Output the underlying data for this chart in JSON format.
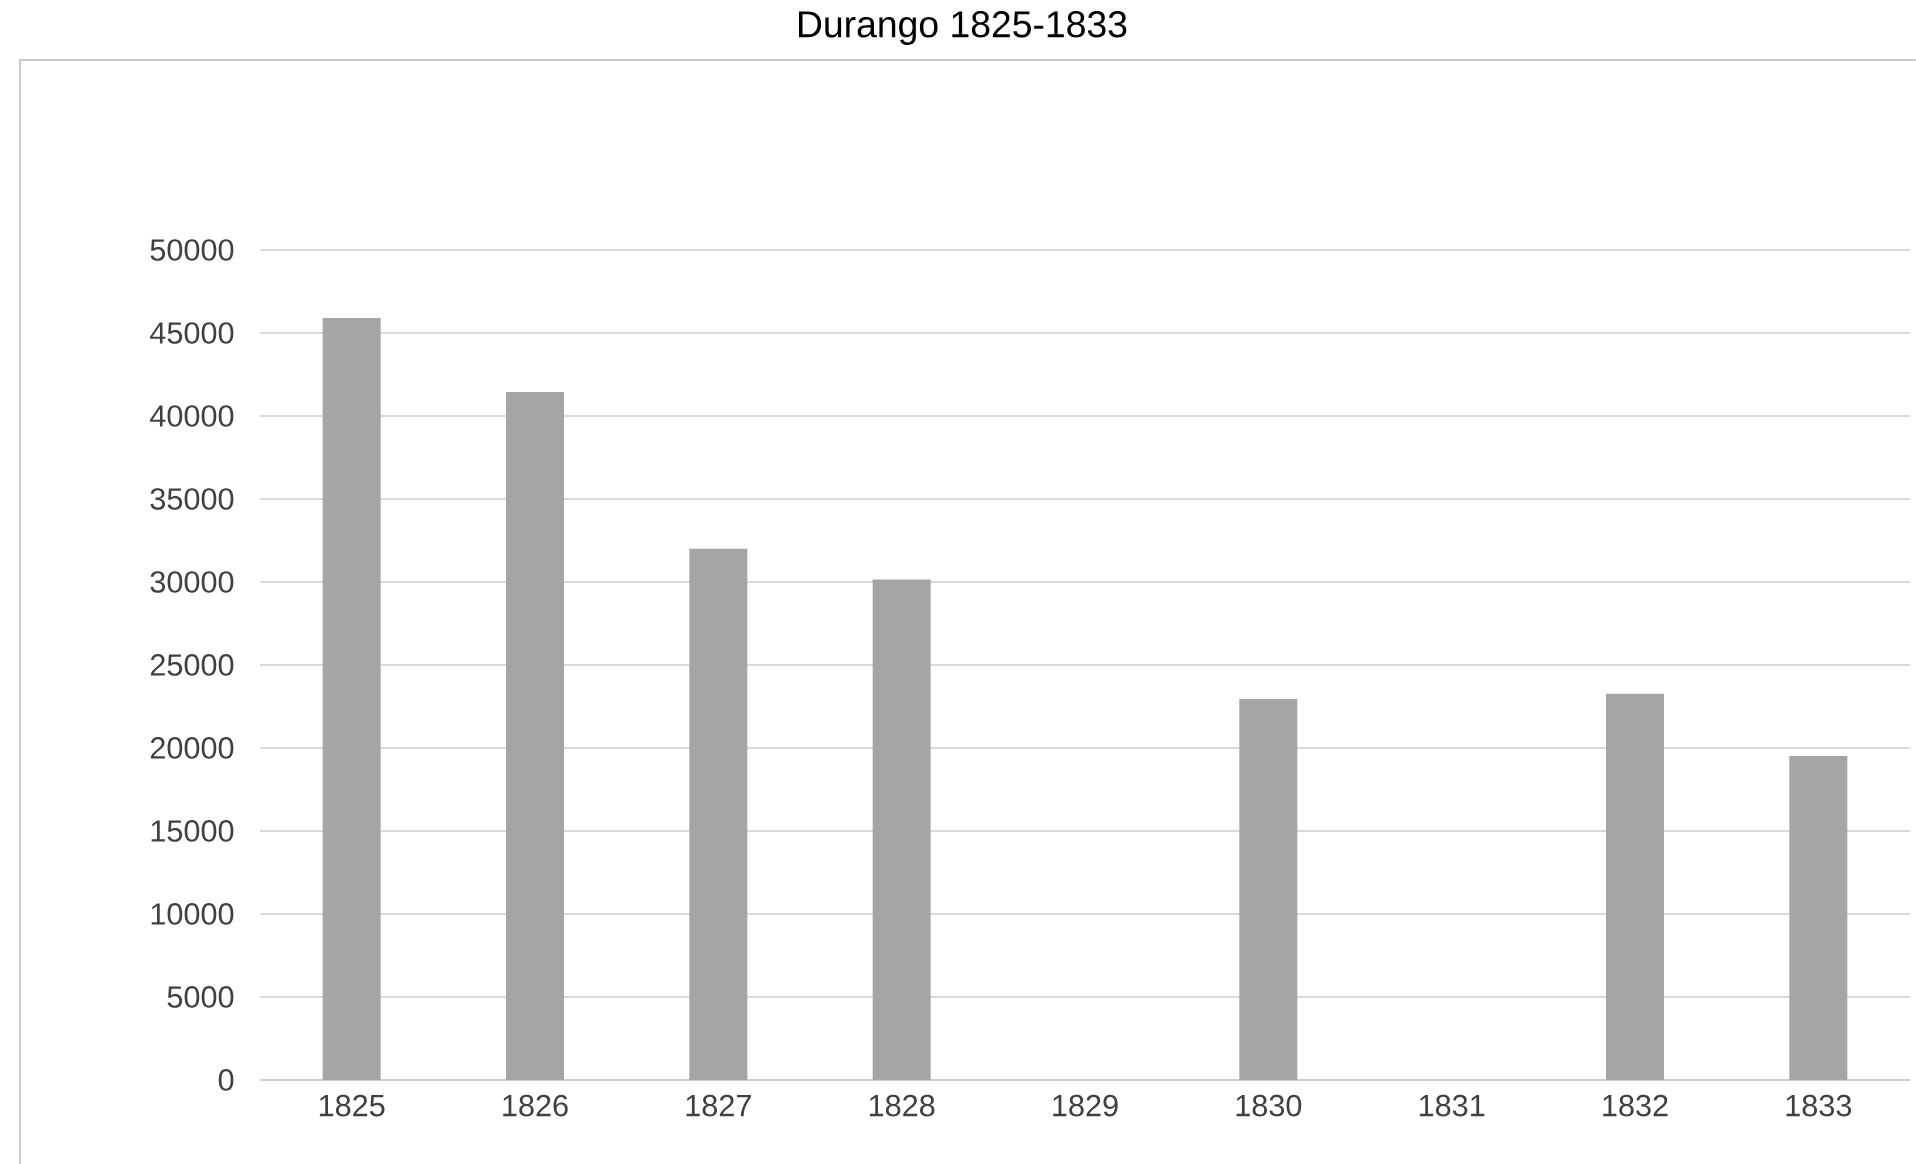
{
  "chart_data": {
    "type": "bar",
    "title": "Durango 1825-1833",
    "categories": [
      "1825",
      "1826",
      "1827",
      "1828",
      "1829",
      "1830",
      "1831",
      "1832",
      "1833"
    ],
    "values": [
      45900,
      41450,
      32000,
      30150,
      null,
      22950,
      null,
      23260,
      19520
    ],
    "color": "#a5a5a5",
    "ylim": [
      0,
      50000
    ],
    "yticks": [
      0,
      5000,
      10000,
      15000,
      20000,
      25000,
      30000,
      35000,
      40000,
      45000,
      50000
    ],
    "grid": "y"
  }
}
